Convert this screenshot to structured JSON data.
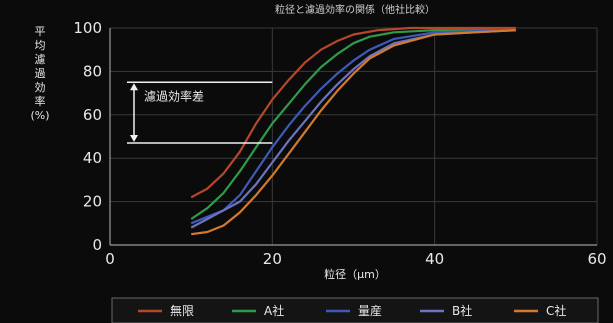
{
  "chart_data": {
    "type": "line",
    "title": "粒径と濾過効率の関係（他社比較）",
    "xlabel": "粒径（μm）",
    "ylabel_chars": [
      "平",
      "均",
      "濾",
      "過",
      "効",
      "率",
      "(%)"
    ],
    "xlim": [
      0,
      60
    ],
    "ylim": [
      0,
      100
    ],
    "x_ticks": [
      "0",
      "20",
      "40",
      "60"
    ],
    "y_ticks": [
      "0",
      "20",
      "40",
      "60",
      "80",
      "100"
    ],
    "grid": true,
    "legend_position": "bottom",
    "annotation": {
      "label": "濾過効率差",
      "x_value": 20,
      "y_top": 75,
      "y_bottom": 47
    },
    "series": [
      {
        "name": "無限",
        "color": "#b5472b",
        "points": [
          [
            10,
            22
          ],
          [
            12,
            26
          ],
          [
            14,
            33
          ],
          [
            16,
            43
          ],
          [
            18,
            56
          ],
          [
            20,
            67
          ],
          [
            22,
            76
          ],
          [
            24,
            84
          ],
          [
            26,
            90
          ],
          [
            28,
            94
          ],
          [
            30,
            97
          ],
          [
            33,
            99
          ],
          [
            37,
            100
          ],
          [
            50,
            100
          ]
        ]
      },
      {
        "name": "A社",
        "color": "#2f9a4a",
        "points": [
          [
            10,
            12
          ],
          [
            12,
            17
          ],
          [
            14,
            24
          ],
          [
            16,
            34
          ],
          [
            18,
            45
          ],
          [
            20,
            56
          ],
          [
            22,
            65
          ],
          [
            24,
            74
          ],
          [
            26,
            82
          ],
          [
            28,
            88
          ],
          [
            30,
            93
          ],
          [
            32,
            96
          ],
          [
            35,
            98
          ],
          [
            40,
            99
          ],
          [
            50,
            99
          ]
        ]
      },
      {
        "name": "量産",
        "color": "#3e5ab8",
        "points": [
          [
            10,
            10
          ],
          [
            12,
            13
          ],
          [
            14,
            16
          ],
          [
            16,
            23
          ],
          [
            18,
            34
          ],
          [
            20,
            45
          ],
          [
            22,
            55
          ],
          [
            24,
            64
          ],
          [
            26,
            72
          ],
          [
            28,
            79
          ],
          [
            30,
            85
          ],
          [
            32,
            90
          ],
          [
            35,
            95
          ],
          [
            40,
            98
          ],
          [
            50,
            99
          ]
        ]
      },
      {
        "name": "B社",
        "color": "#6a74bf",
        "points": [
          [
            10,
            8
          ],
          [
            12,
            12
          ],
          [
            14,
            16
          ],
          [
            16,
            20
          ],
          [
            18,
            28
          ],
          [
            20,
            38
          ],
          [
            22,
            48
          ],
          [
            24,
            57
          ],
          [
            26,
            66
          ],
          [
            28,
            74
          ],
          [
            30,
            81
          ],
          [
            32,
            87
          ],
          [
            35,
            93
          ],
          [
            40,
            97
          ],
          [
            45,
            98
          ],
          [
            50,
            99
          ]
        ]
      },
      {
        "name": "C社",
        "color": "#d27a2e",
        "points": [
          [
            10,
            5
          ],
          [
            12,
            6
          ],
          [
            14,
            9
          ],
          [
            16,
            15
          ],
          [
            18,
            23
          ],
          [
            20,
            32
          ],
          [
            22,
            42
          ],
          [
            24,
            52
          ],
          [
            26,
            62
          ],
          [
            28,
            71
          ],
          [
            30,
            79
          ],
          [
            32,
            86
          ],
          [
            35,
            92
          ],
          [
            40,
            97
          ],
          [
            45,
            98
          ],
          [
            50,
            99
          ]
        ]
      }
    ]
  }
}
